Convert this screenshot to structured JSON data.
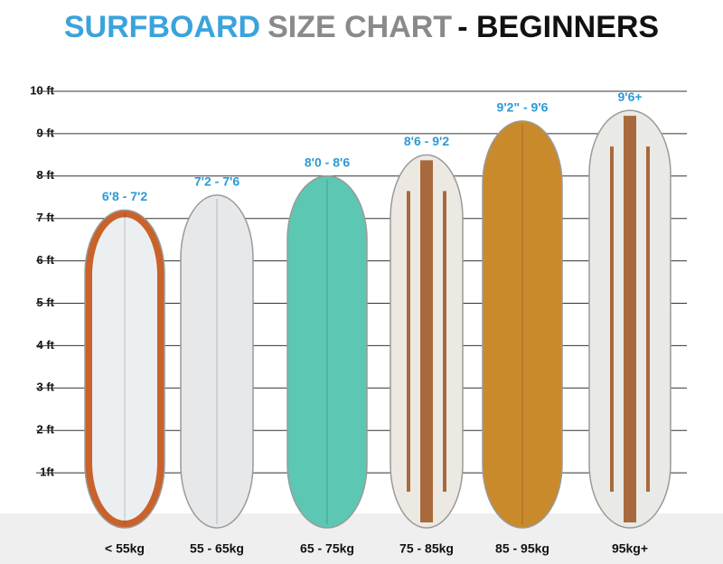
{
  "chart_data": {
    "type": "bar",
    "title_parts": [
      {
        "text": "SURFBOARD",
        "color": "#3aa3dc"
      },
      {
        "text": "SIZE CHART",
        "color": "#8a8a8a"
      },
      {
        "text": "- BEGINNERS",
        "color": "#111111"
      }
    ],
    "categories": [
      "< 55kg",
      "55 - 65kg",
      "65 - 75kg",
      "75 - 85kg",
      "85 - 95kg",
      "95kg+"
    ],
    "values": [
      7.2,
      7.55,
      8.0,
      8.5,
      9.3,
      9.55
    ],
    "board_labels": [
      "6'8 - 7'2",
      "7'2 - 7'6",
      "8'0 - 8'6",
      "8'6 - 9'2",
      "9'2\" - 9'6",
      "9'6+"
    ],
    "colors": [
      "#c9622b",
      "#e6e8ea",
      "#5cc7b3",
      "#ece9e3",
      "#c98a2c",
      "#e9e9e6"
    ],
    "ylim": [
      0,
      10
    ],
    "yticks": [
      {
        "value": 1,
        "label": "1ft"
      },
      {
        "value": 2,
        "label": "2 ft"
      },
      {
        "value": 3,
        "label": "3 ft"
      },
      {
        "value": 4,
        "label": "4 ft"
      },
      {
        "value": 5,
        "label": "5 ft"
      },
      {
        "value": 6,
        "label": "6 ft"
      },
      {
        "value": 7,
        "label": "7 ft"
      },
      {
        "value": 8,
        "label": "8 ft"
      },
      {
        "value": 9,
        "label": "9 ft"
      },
      {
        "value": 10,
        "label": "10 ft"
      }
    ],
    "grid": true
  }
}
